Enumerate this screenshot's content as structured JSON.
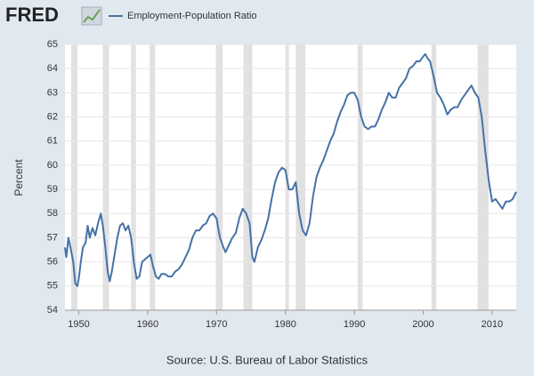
{
  "chart_data": {
    "type": "line",
    "logo": "FRED",
    "ylabel": "Percent",
    "source": "Source: U.S. Bureau of Labor Statistics",
    "xlim": [
      1948,
      2013.5
    ],
    "xticks": [
      1950,
      1960,
      1970,
      1980,
      1990,
      2000,
      2010
    ],
    "ylim": [
      54,
      65
    ],
    "yticks": [
      54,
      55,
      56,
      57,
      58,
      59,
      60,
      61,
      62,
      63,
      64,
      65
    ],
    "grid": true,
    "recession_color": "#e1e1e1",
    "recessions": [
      [
        1948.9,
        1949.8
      ],
      [
        1953.5,
        1954.4
      ],
      [
        1957.6,
        1958.3
      ],
      [
        1960.3,
        1961.1
      ],
      [
        1969.9,
        1970.9
      ],
      [
        1973.9,
        1975.2
      ],
      [
        1980.0,
        1980.5
      ],
      [
        1981.5,
        1982.9
      ],
      [
        1990.5,
        1991.2
      ],
      [
        2001.2,
        2001.9
      ],
      [
        2007.9,
        2009.5
      ]
    ],
    "x": [
      1948.0,
      1948.2,
      1948.5,
      1948.8,
      1949.2,
      1949.5,
      1949.8,
      1950.0,
      1950.3,
      1950.6,
      1951.0,
      1951.3,
      1951.6,
      1952.0,
      1952.4,
      1952.8,
      1953.2,
      1953.5,
      1953.9,
      1954.2,
      1954.5,
      1954.8,
      1955.2,
      1955.6,
      1956.0,
      1956.4,
      1956.8,
      1957.2,
      1957.6,
      1958.0,
      1958.4,
      1958.8,
      1959.2,
      1959.6,
      1960.0,
      1960.4,
      1960.8,
      1961.2,
      1961.6,
      1962.0,
      1962.5,
      1963.0,
      1963.5,
      1964.0,
      1964.5,
      1965.0,
      1965.5,
      1966.0,
      1966.5,
      1967.0,
      1967.5,
      1968.0,
      1968.5,
      1969.0,
      1969.5,
      1970.0,
      1970.5,
      1971.0,
      1971.3,
      1971.8,
      1972.3,
      1972.8,
      1973.3,
      1973.8,
      1974.3,
      1974.8,
      1975.2,
      1975.5,
      1976.0,
      1976.5,
      1977.0,
      1977.5,
      1978.0,
      1978.5,
      1979.0,
      1979.5,
      1980.0,
      1980.5,
      1981.0,
      1981.5,
      1982.0,
      1982.5,
      1983.0,
      1983.5,
      1984.0,
      1984.5,
      1985.0,
      1985.5,
      1986.0,
      1986.5,
      1987.0,
      1987.5,
      1988.0,
      1988.5,
      1989.0,
      1989.5,
      1990.0,
      1990.5,
      1991.0,
      1991.5,
      1992.0,
      1992.5,
      1993.0,
      1993.5,
      1994.0,
      1994.5,
      1995.0,
      1995.5,
      1996.0,
      1996.5,
      1997.0,
      1997.5,
      1998.0,
      1998.5,
      1999.0,
      1999.5,
      2000.0,
      2000.3,
      2000.7,
      2001.0,
      2001.5,
      2002.0,
      2002.5,
      2003.0,
      2003.5,
      2004.0,
      2004.5,
      2005.0,
      2005.5,
      2006.0,
      2006.5,
      2007.0,
      2007.5,
      2008.0,
      2008.5,
      2009.0,
      2009.5,
      2010.0,
      2010.5,
      2011.0,
      2011.5,
      2012.0,
      2012.5,
      2013.0,
      2013.5
    ],
    "series": [
      {
        "name": "Employment-Population Ratio",
        "color": "#4572a7",
        "values": [
          56.6,
          56.2,
          57.0,
          56.6,
          56.0,
          55.1,
          55.0,
          55.3,
          56.0,
          56.6,
          56.8,
          57.5,
          57.0,
          57.4,
          57.1,
          57.6,
          58.0,
          57.5,
          56.5,
          55.6,
          55.2,
          55.6,
          56.3,
          57.0,
          57.5,
          57.6,
          57.3,
          57.5,
          57.0,
          56.0,
          55.3,
          55.4,
          56.0,
          56.1,
          56.2,
          56.3,
          55.8,
          55.4,
          55.3,
          55.5,
          55.5,
          55.4,
          55.4,
          55.6,
          55.7,
          55.9,
          56.2,
          56.5,
          57.0,
          57.3,
          57.3,
          57.5,
          57.6,
          57.9,
          58.0,
          57.8,
          57.0,
          56.6,
          56.4,
          56.7,
          57.0,
          57.2,
          57.8,
          58.2,
          58.0,
          57.6,
          56.2,
          56.0,
          56.6,
          56.9,
          57.3,
          57.8,
          58.6,
          59.3,
          59.7,
          59.9,
          59.8,
          59.0,
          59.0,
          59.3,
          58.0,
          57.3,
          57.1,
          57.6,
          58.7,
          59.5,
          59.9,
          60.2,
          60.6,
          61.0,
          61.3,
          61.8,
          62.2,
          62.5,
          62.9,
          63.0,
          63.0,
          62.7,
          62.0,
          61.6,
          61.5,
          61.6,
          61.6,
          61.9,
          62.3,
          62.6,
          63.0,
          62.8,
          62.8,
          63.2,
          63.4,
          63.6,
          64.0,
          64.1,
          64.3,
          64.3,
          64.5,
          64.6,
          64.4,
          64.3,
          63.7,
          63.0,
          62.8,
          62.5,
          62.1,
          62.3,
          62.4,
          62.4,
          62.7,
          62.9,
          63.1,
          63.3,
          63.0,
          62.8,
          62.0,
          60.6,
          59.4,
          58.5,
          58.6,
          58.4,
          58.2,
          58.5,
          58.5,
          58.6,
          58.9
        ]
      }
    ]
  }
}
